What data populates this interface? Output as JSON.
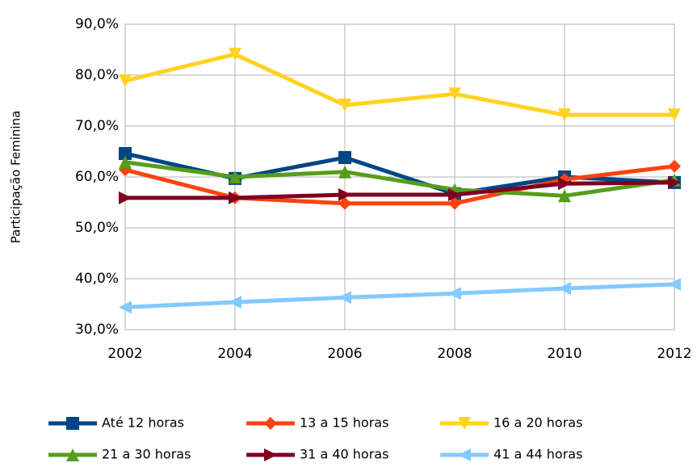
{
  "chart_data": {
    "type": "line",
    "y_label": "Participação Feminina",
    "x": [
      2002,
      2004,
      2006,
      2008,
      2010,
      2012
    ],
    "xlim": [
      2002,
      2012
    ],
    "xticks": [
      2002,
      2004,
      2006,
      2008,
      2010,
      2012
    ],
    "ylim": [
      30,
      90
    ],
    "yticks": [
      {
        "value": 30,
        "label": "30,0%"
      },
      {
        "value": 40,
        "label": "40,0%"
      },
      {
        "value": 50,
        "label": "50,0%"
      },
      {
        "value": 60,
        "label": "60,0%"
      },
      {
        "value": 70,
        "label": "70,0%"
      },
      {
        "value": 80,
        "label": "80,0%"
      },
      {
        "value": 90,
        "label": "90,0%"
      }
    ],
    "grid": true,
    "legend": "bottom",
    "series": [
      {
        "name": "Até 12 horas",
        "color": "#004586",
        "marker": "square",
        "values": [
          64.6,
          59.7,
          63.8,
          56.7,
          60.0,
          58.9
        ]
      },
      {
        "name": "13 a 15 horas",
        "color": "#ff420e",
        "marker": "diamond",
        "values": [
          61.4,
          55.9,
          54.8,
          54.8,
          59.5,
          62.1
        ]
      },
      {
        "name": "16 a 20 horas",
        "color": "#ffd320",
        "marker": "triangle-down",
        "values": [
          78.9,
          84.1,
          74.1,
          76.3,
          72.2,
          72.2
        ]
      },
      {
        "name": "21 a 30 horas",
        "color": "#579d1c",
        "marker": "triangle-up",
        "values": [
          62.9,
          60.0,
          61.0,
          57.5,
          56.3,
          59.4
        ]
      },
      {
        "name": "31 a 40 horas",
        "color": "#7e0021",
        "marker": "triangle-right",
        "values": [
          55.9,
          55.9,
          56.5,
          56.5,
          58.7,
          58.9
        ]
      },
      {
        "name": "41 a 44 horas",
        "color": "#83caff",
        "marker": "triangle-left",
        "values": [
          34.4,
          35.4,
          36.3,
          37.1,
          38.1,
          38.9
        ]
      }
    ]
  }
}
